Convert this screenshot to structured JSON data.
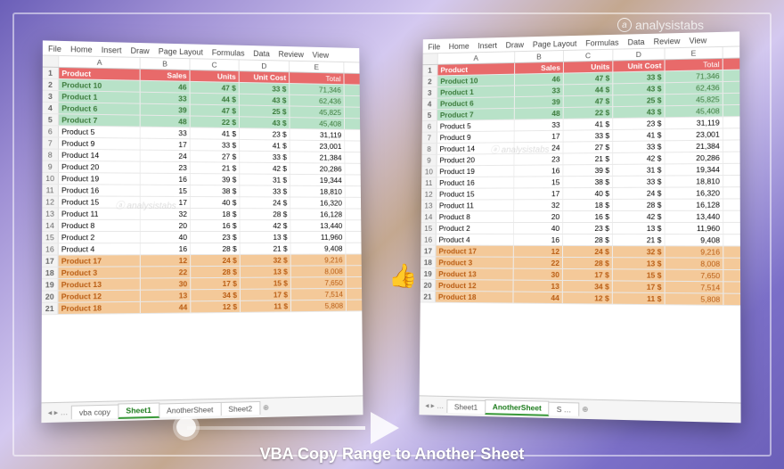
{
  "caption": "VBA Copy Range to Another Sheet",
  "watermark": "analysistabs",
  "ribbon_tabs": [
    "File",
    "Home",
    "Insert",
    "Draw",
    "Page Layout",
    "Formulas",
    "Data",
    "Review",
    "View"
  ],
  "columns": [
    "A",
    "B",
    "C",
    "D",
    "E"
  ],
  "header_row": {
    "product": "Product",
    "sales": "Sales",
    "units": "Units",
    "unitcost": "Unit Cost",
    "total": "Total"
  },
  "left": {
    "tabs": [
      "vba copy",
      "Sheet1",
      "AnotherSheet",
      "Sheet2"
    ],
    "active_tab": "Sheet1",
    "rows": [
      {
        "g": "grn",
        "a": "Product 10",
        "b": "46",
        "c": "47",
        "d": "$",
        "dv": "33",
        "e": "$",
        "ev": "71,346"
      },
      {
        "g": "grn",
        "a": "Product 1",
        "b": "33",
        "c": "44",
        "d": "$",
        "dv": "43",
        "e": "$",
        "ev": "62,436"
      },
      {
        "g": "grn",
        "a": "Product 6",
        "b": "39",
        "c": "47",
        "d": "$",
        "dv": "25",
        "e": "$",
        "ev": "45,825"
      },
      {
        "g": "grn",
        "a": "Product 7",
        "b": "48",
        "c": "22",
        "d": "$",
        "dv": "43",
        "e": "$",
        "ev": "45,408"
      },
      {
        "g": "",
        "a": "Product 5",
        "b": "33",
        "c": "41",
        "d": "$",
        "dv": "23",
        "e": "$",
        "ev": "31,119"
      },
      {
        "g": "",
        "a": "Product 9",
        "b": "17",
        "c": "33",
        "d": "$",
        "dv": "41",
        "e": "$",
        "ev": "23,001"
      },
      {
        "g": "",
        "a": "Product 14",
        "b": "24",
        "c": "27",
        "d": "$",
        "dv": "33",
        "e": "$",
        "ev": "21,384"
      },
      {
        "g": "",
        "a": "Product 20",
        "b": "23",
        "c": "21",
        "d": "$",
        "dv": "42",
        "e": "$",
        "ev": "20,286"
      },
      {
        "g": "",
        "a": "Product 19",
        "b": "16",
        "c": "39",
        "d": "$",
        "dv": "31",
        "e": "$",
        "ev": "19,344"
      },
      {
        "g": "",
        "a": "Product 16",
        "b": "15",
        "c": "38",
        "d": "$",
        "dv": "33",
        "e": "$",
        "ev": "18,810"
      },
      {
        "g": "",
        "a": "Product 15",
        "b": "17",
        "c": "40",
        "d": "$",
        "dv": "24",
        "e": "$",
        "ev": "16,320"
      },
      {
        "g": "",
        "a": "Product 11",
        "b": "32",
        "c": "18",
        "d": "$",
        "dv": "28",
        "e": "$",
        "ev": "16,128"
      },
      {
        "g": "",
        "a": "Product 8",
        "b": "20",
        "c": "16",
        "d": "$",
        "dv": "42",
        "e": "$",
        "ev": "13,440"
      },
      {
        "g": "",
        "a": "Product 2",
        "b": "40",
        "c": "23",
        "d": "$",
        "dv": "13",
        "e": "$",
        "ev": "11,960"
      },
      {
        "g": "",
        "a": "Product 4",
        "b": "16",
        "c": "28",
        "d": "$",
        "dv": "21",
        "e": "$",
        "ev": "9,408"
      },
      {
        "g": "org",
        "a": "Product 17",
        "b": "12",
        "c": "24",
        "d": "$",
        "dv": "32",
        "e": "$",
        "ev": "9,216"
      },
      {
        "g": "org",
        "a": "Product 3",
        "b": "22",
        "c": "28",
        "d": "$",
        "dv": "13",
        "e": "$",
        "ev": "8,008"
      },
      {
        "g": "org",
        "a": "Product 13",
        "b": "30",
        "c": "17",
        "d": "$",
        "dv": "15",
        "e": "$",
        "ev": "7,650"
      },
      {
        "g": "org",
        "a": "Product 12",
        "b": "13",
        "c": "34",
        "d": "$",
        "dv": "17",
        "e": "$",
        "ev": "7,514"
      },
      {
        "g": "org",
        "a": "Product 18",
        "b": "44",
        "c": "12",
        "d": "$",
        "dv": "11",
        "e": "$",
        "ev": "5,808"
      }
    ]
  },
  "right": {
    "tabs": [
      "Sheet1",
      "AnotherSheet",
      "S …"
    ],
    "active_tab": "AnotherSheet",
    "rows": [
      {
        "g": "grn",
        "a": "Product 10",
        "b": "46",
        "c": "47",
        "d": "$",
        "dv": "33",
        "e": "$",
        "ev": "71,346"
      },
      {
        "g": "grn",
        "a": "Product 1",
        "b": "33",
        "c": "44",
        "d": "$",
        "dv": "43",
        "e": "$",
        "ev": "62,436"
      },
      {
        "g": "grn",
        "a": "Product 6",
        "b": "39",
        "c": "47",
        "d": "$",
        "dv": "25",
        "e": "$",
        "ev": "45,825"
      },
      {
        "g": "grn",
        "a": "Product 7",
        "b": "48",
        "c": "22",
        "d": "$",
        "dv": "43",
        "e": "$",
        "ev": "45,408"
      },
      {
        "g": "",
        "a": "Product 5",
        "b": "33",
        "c": "41",
        "d": "$",
        "dv": "23",
        "e": "$",
        "ev": "31,119"
      },
      {
        "g": "",
        "a": "Product 9",
        "b": "17",
        "c": "33",
        "d": "$",
        "dv": "41",
        "e": "$",
        "ev": "23,001"
      },
      {
        "g": "",
        "a": "Product 14",
        "b": "24",
        "c": "27",
        "d": "$",
        "dv": "33",
        "e": "$",
        "ev": "21,384"
      },
      {
        "g": "",
        "a": "Product 20",
        "b": "23",
        "c": "21",
        "d": "$",
        "dv": "42",
        "e": "$",
        "ev": "20,286"
      },
      {
        "g": "",
        "a": "Product 19",
        "b": "16",
        "c": "39",
        "d": "$",
        "dv": "31",
        "e": "$",
        "ev": "19,344"
      },
      {
        "g": "",
        "a": "Product 16",
        "b": "15",
        "c": "38",
        "d": "$",
        "dv": "33",
        "e": "$",
        "ev": "18,810"
      },
      {
        "g": "",
        "a": "Product 15",
        "b": "17",
        "c": "40",
        "d": "$",
        "dv": "24",
        "e": "$",
        "ev": "16,320"
      },
      {
        "g": "",
        "a": "Product 11",
        "b": "32",
        "c": "18",
        "d": "$",
        "dv": "28",
        "e": "$",
        "ev": "16,128"
      },
      {
        "g": "",
        "a": "Product 8",
        "b": "20",
        "c": "16",
        "d": "$",
        "dv": "42",
        "e": "$",
        "ev": "13,440"
      },
      {
        "g": "",
        "a": "Product 2",
        "b": "40",
        "c": "23",
        "d": "$",
        "dv": "13",
        "e": "$",
        "ev": "11,960"
      },
      {
        "g": "",
        "a": "Product 4",
        "b": "16",
        "c": "28",
        "d": "$",
        "dv": "21",
        "e": "$",
        "ev": "9,408"
      },
      {
        "g": "org",
        "a": "Product 17",
        "b": "12",
        "c": "24",
        "d": "$",
        "dv": "32",
        "e": "$",
        "ev": "9,216"
      },
      {
        "g": "org",
        "a": "Product 3",
        "b": "22",
        "c": "28",
        "d": "$",
        "dv": "13",
        "e": "$",
        "ev": "8,008"
      },
      {
        "g": "org",
        "a": "Product 13",
        "b": "30",
        "c": "17",
        "d": "$",
        "dv": "15",
        "e": "$",
        "ev": "7,650"
      },
      {
        "g": "org",
        "a": "Product 12",
        "b": "13",
        "c": "34",
        "d": "$",
        "dv": "17",
        "e": "$",
        "ev": "7,514"
      },
      {
        "g": "org",
        "a": "Product 18",
        "b": "44",
        "c": "12",
        "d": "$",
        "dv": "11",
        "e": "$",
        "ev": "5,808"
      }
    ]
  }
}
